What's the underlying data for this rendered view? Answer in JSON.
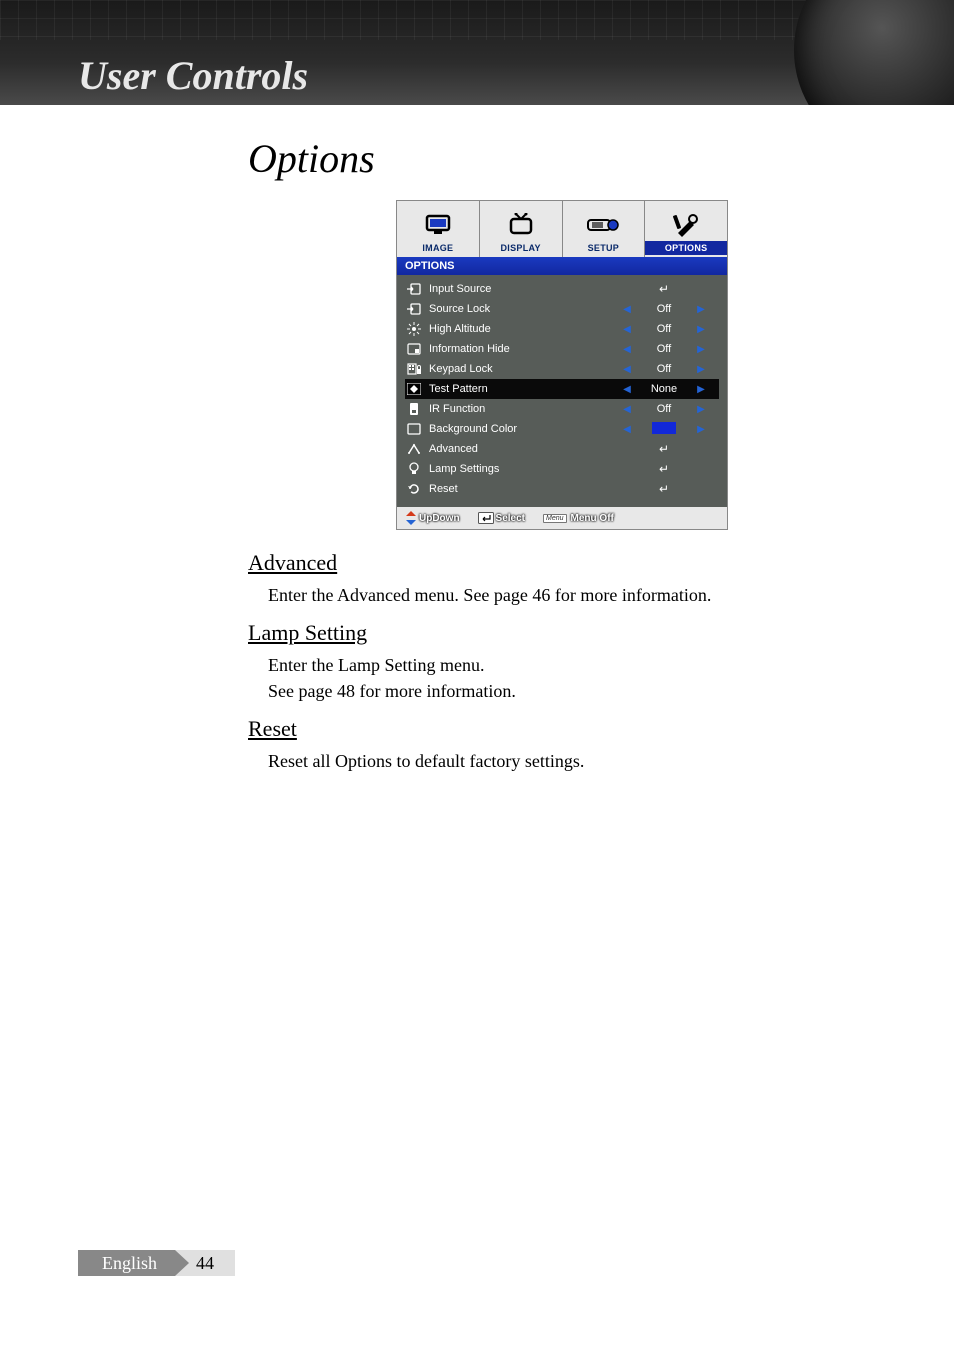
{
  "header": {
    "title": "User Controls"
  },
  "section": {
    "title": "Options"
  },
  "osd": {
    "tabs": [
      {
        "label": "IMAGE"
      },
      {
        "label": "DISPLAY"
      },
      {
        "label": "SETUP"
      },
      {
        "label": "OPTIONS"
      }
    ],
    "bar_label": "OPTIONS",
    "rows": [
      {
        "label": "Input Source",
        "type": "enter"
      },
      {
        "label": "Source Lock",
        "type": "toggle",
        "value": "Off"
      },
      {
        "label": "High Altitude",
        "type": "toggle",
        "value": "Off"
      },
      {
        "label": "Information Hide",
        "type": "toggle",
        "value": "Off"
      },
      {
        "label": "Keypad Lock",
        "type": "toggle",
        "value": "Off"
      },
      {
        "label": "Test Pattern",
        "type": "toggle",
        "value": "None",
        "selected": true
      },
      {
        "label": "IR Function",
        "type": "toggle",
        "value": "Off"
      },
      {
        "label": "Background Color",
        "type": "color",
        "color": "#1228d8"
      },
      {
        "label": "Advanced",
        "type": "enter"
      },
      {
        "label": "Lamp Settings",
        "type": "enter"
      },
      {
        "label": "Reset",
        "type": "enter"
      }
    ],
    "footer": {
      "updown": "UpDown",
      "select": "Select",
      "menu_box": "Menu",
      "menu_off": "Menu Off"
    },
    "colors": {
      "tab_active_bg": "#1228a0",
      "bar_bg": "#1a3ac0",
      "list_bg": "#575c58",
      "arrow_color": "#2564d4",
      "updown_red": "#d43a1a",
      "updown_blue": "#2564d4"
    }
  },
  "subsections": [
    {
      "title": "Advanced",
      "lines": [
        "Enter the Advanced menu. See page 46 for more information."
      ]
    },
    {
      "title": "Lamp Setting",
      "lines": [
        "Enter the Lamp Setting menu.",
        "See page 48 for more information."
      ]
    },
    {
      "title": "Reset",
      "lines": [
        "Reset all Options to default factory settings."
      ]
    }
  ],
  "footer": {
    "language": "English",
    "page": "44"
  }
}
